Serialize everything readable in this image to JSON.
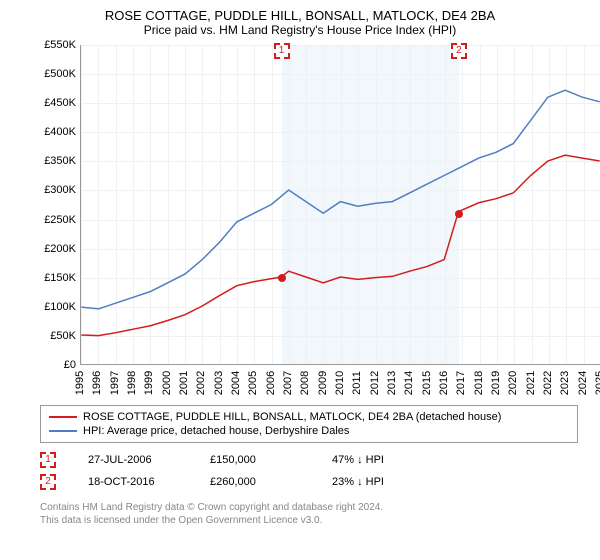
{
  "title": "ROSE COTTAGE, PUDDLE HILL, BONSALL, MATLOCK, DE4 2BA",
  "subtitle": "Price paid vs. HM Land Registry's House Price Index (HPI)",
  "chart": {
    "type": "line",
    "background_color": "#ffffff",
    "grid_color": "#f0f1f2",
    "shade_color": "#eaf2fa",
    "ylim": [
      0,
      550000
    ],
    "ytick_step": 50000,
    "yticks": [
      "£0",
      "£50K",
      "£100K",
      "£150K",
      "£200K",
      "£250K",
      "£300K",
      "£350K",
      "£400K",
      "£450K",
      "£500K",
      "£550K"
    ],
    "xlim": [
      1995,
      2025
    ],
    "xticks": [
      1995,
      1996,
      1997,
      1998,
      1999,
      2000,
      2001,
      2002,
      2003,
      2004,
      2005,
      2006,
      2007,
      2008,
      2009,
      2010,
      2011,
      2012,
      2013,
      2014,
      2015,
      2016,
      2017,
      2018,
      2019,
      2020,
      2021,
      2022,
      2023,
      2024,
      2025
    ],
    "shade_start": 2006.57,
    "shade_end": 2016.8,
    "series": [
      {
        "name": "hpi",
        "label": "HPI: Average price, detached house, Derbyshire Dales",
        "color": "#4f7fbf",
        "width": 1.5,
        "data": [
          [
            1995,
            98000
          ],
          [
            1996,
            95000
          ],
          [
            1997,
            105000
          ],
          [
            1998,
            115000
          ],
          [
            1999,
            125000
          ],
          [
            2000,
            140000
          ],
          [
            2001,
            155000
          ],
          [
            2002,
            180000
          ],
          [
            2003,
            210000
          ],
          [
            2004,
            245000
          ],
          [
            2005,
            260000
          ],
          [
            2006,
            275000
          ],
          [
            2007,
            300000
          ],
          [
            2008,
            280000
          ],
          [
            2009,
            260000
          ],
          [
            2010,
            280000
          ],
          [
            2011,
            272000
          ],
          [
            2012,
            277000
          ],
          [
            2013,
            280000
          ],
          [
            2014,
            295000
          ],
          [
            2015,
            310000
          ],
          [
            2016,
            325000
          ],
          [
            2017,
            340000
          ],
          [
            2018,
            355000
          ],
          [
            2019,
            365000
          ],
          [
            2020,
            380000
          ],
          [
            2021,
            420000
          ],
          [
            2022,
            460000
          ],
          [
            2023,
            472000
          ],
          [
            2024,
            460000
          ],
          [
            2025,
            452000
          ]
        ]
      },
      {
        "name": "property",
        "label": "ROSE COTTAGE, PUDDLE HILL, BONSALL, MATLOCK, DE4 2BA (detached house)",
        "color": "#d41c1c",
        "width": 1.5,
        "data": [
          [
            1995,
            50000
          ],
          [
            1996,
            49000
          ],
          [
            1997,
            54000
          ],
          [
            1998,
            60000
          ],
          [
            1999,
            66000
          ],
          [
            2000,
            75000
          ],
          [
            2001,
            85000
          ],
          [
            2002,
            100000
          ],
          [
            2003,
            118000
          ],
          [
            2004,
            135000
          ],
          [
            2005,
            142000
          ],
          [
            2006.57,
            150000
          ],
          [
            2007,
            160000
          ],
          [
            2008,
            150000
          ],
          [
            2009,
            140000
          ],
          [
            2010,
            150000
          ],
          [
            2011,
            146000
          ],
          [
            2012,
            149000
          ],
          [
            2013,
            151000
          ],
          [
            2014,
            160000
          ],
          [
            2015,
            168000
          ],
          [
            2016,
            180000
          ],
          [
            2016.8,
            260000
          ],
          [
            2017,
            265000
          ],
          [
            2018,
            278000
          ],
          [
            2019,
            285000
          ],
          [
            2020,
            295000
          ],
          [
            2021,
            325000
          ],
          [
            2022,
            350000
          ],
          [
            2023,
            360000
          ],
          [
            2024,
            355000
          ],
          [
            2025,
            350000
          ]
        ]
      }
    ],
    "sale_points": [
      {
        "x": 2006.57,
        "y": 150000,
        "color": "#d41c1c"
      },
      {
        "x": 2016.8,
        "y": 260000,
        "color": "#d41c1c"
      }
    ],
    "markers": [
      {
        "id": "1",
        "x": 2006.57,
        "color": "#d41c1c"
      },
      {
        "id": "2",
        "x": 2016.8,
        "color": "#d41c1c"
      }
    ]
  },
  "legend": {
    "property_color": "#d41c1c",
    "hpi_color": "#4f7fbf",
    "property_label": "ROSE COTTAGE, PUDDLE HILL, BONSALL, MATLOCK, DE4 2BA (detached house)",
    "hpi_label": "HPI: Average price, detached house, Derbyshire Dales"
  },
  "sales": [
    {
      "id": "1",
      "date": "27-JUL-2006",
      "price": "£150,000",
      "vs_hpi": "47% ↓ HPI",
      "color": "#d41c1c"
    },
    {
      "id": "2",
      "date": "18-OCT-2016",
      "price": "£260,000",
      "vs_hpi": "23% ↓ HPI",
      "color": "#d41c1c"
    }
  ],
  "footnote_line1": "Contains HM Land Registry data © Crown copyright and database right 2024.",
  "footnote_line2": "This data is licensed under the Open Government Licence v3.0."
}
